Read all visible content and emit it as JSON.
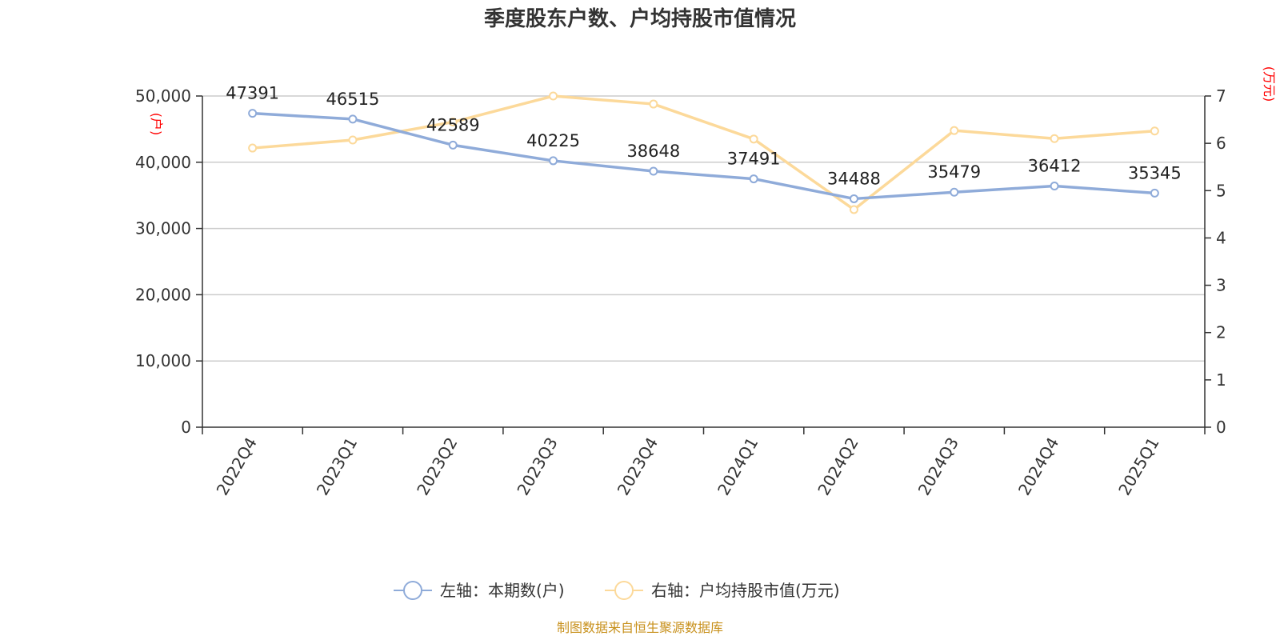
{
  "chart_data": {
    "type": "line",
    "title": "季度股东户数、户均持股市值情况",
    "categories": [
      "2022Q4",
      "2023Q1",
      "2023Q2",
      "2023Q3",
      "2023Q4",
      "2024Q1",
      "2024Q2",
      "2024Q3",
      "2024Q4",
      "2025Q1"
    ],
    "series": [
      {
        "name": "左轴：本期数(户)",
        "axis": "left",
        "color": "#8fabd9",
        "values": [
          47391,
          46515,
          42589,
          40225,
          38648,
          37491,
          34488,
          35479,
          36412,
          35345
        ],
        "labels": [
          "47391",
          "46515",
          "42589",
          "40225",
          "38648",
          "37491",
          "34488",
          "35479",
          "36412",
          "35345"
        ]
      },
      {
        "name": "右轴：户均持股市值(万元)",
        "axis": "right",
        "color": "#fcd99a",
        "values": [
          5.9,
          6.07,
          6.45,
          7.0,
          6.83,
          6.09,
          4.6,
          6.27,
          6.1,
          6.26
        ]
      }
    ],
    "left_axis": {
      "unit": "(户)",
      "ylim": [
        0,
        50000
      ],
      "ticks": [
        "0",
        "10,000",
        "20,000",
        "30,000",
        "40,000",
        "50,000"
      ]
    },
    "right_axis": {
      "unit": "(万元)",
      "ylim": [
        0,
        7
      ],
      "ticks": [
        "0",
        "1",
        "2",
        "3",
        "4",
        "5",
        "6",
        "7"
      ]
    },
    "grid": true,
    "legend_position": "bottom-center",
    "source": "制图数据来自恒生聚源数据库"
  }
}
